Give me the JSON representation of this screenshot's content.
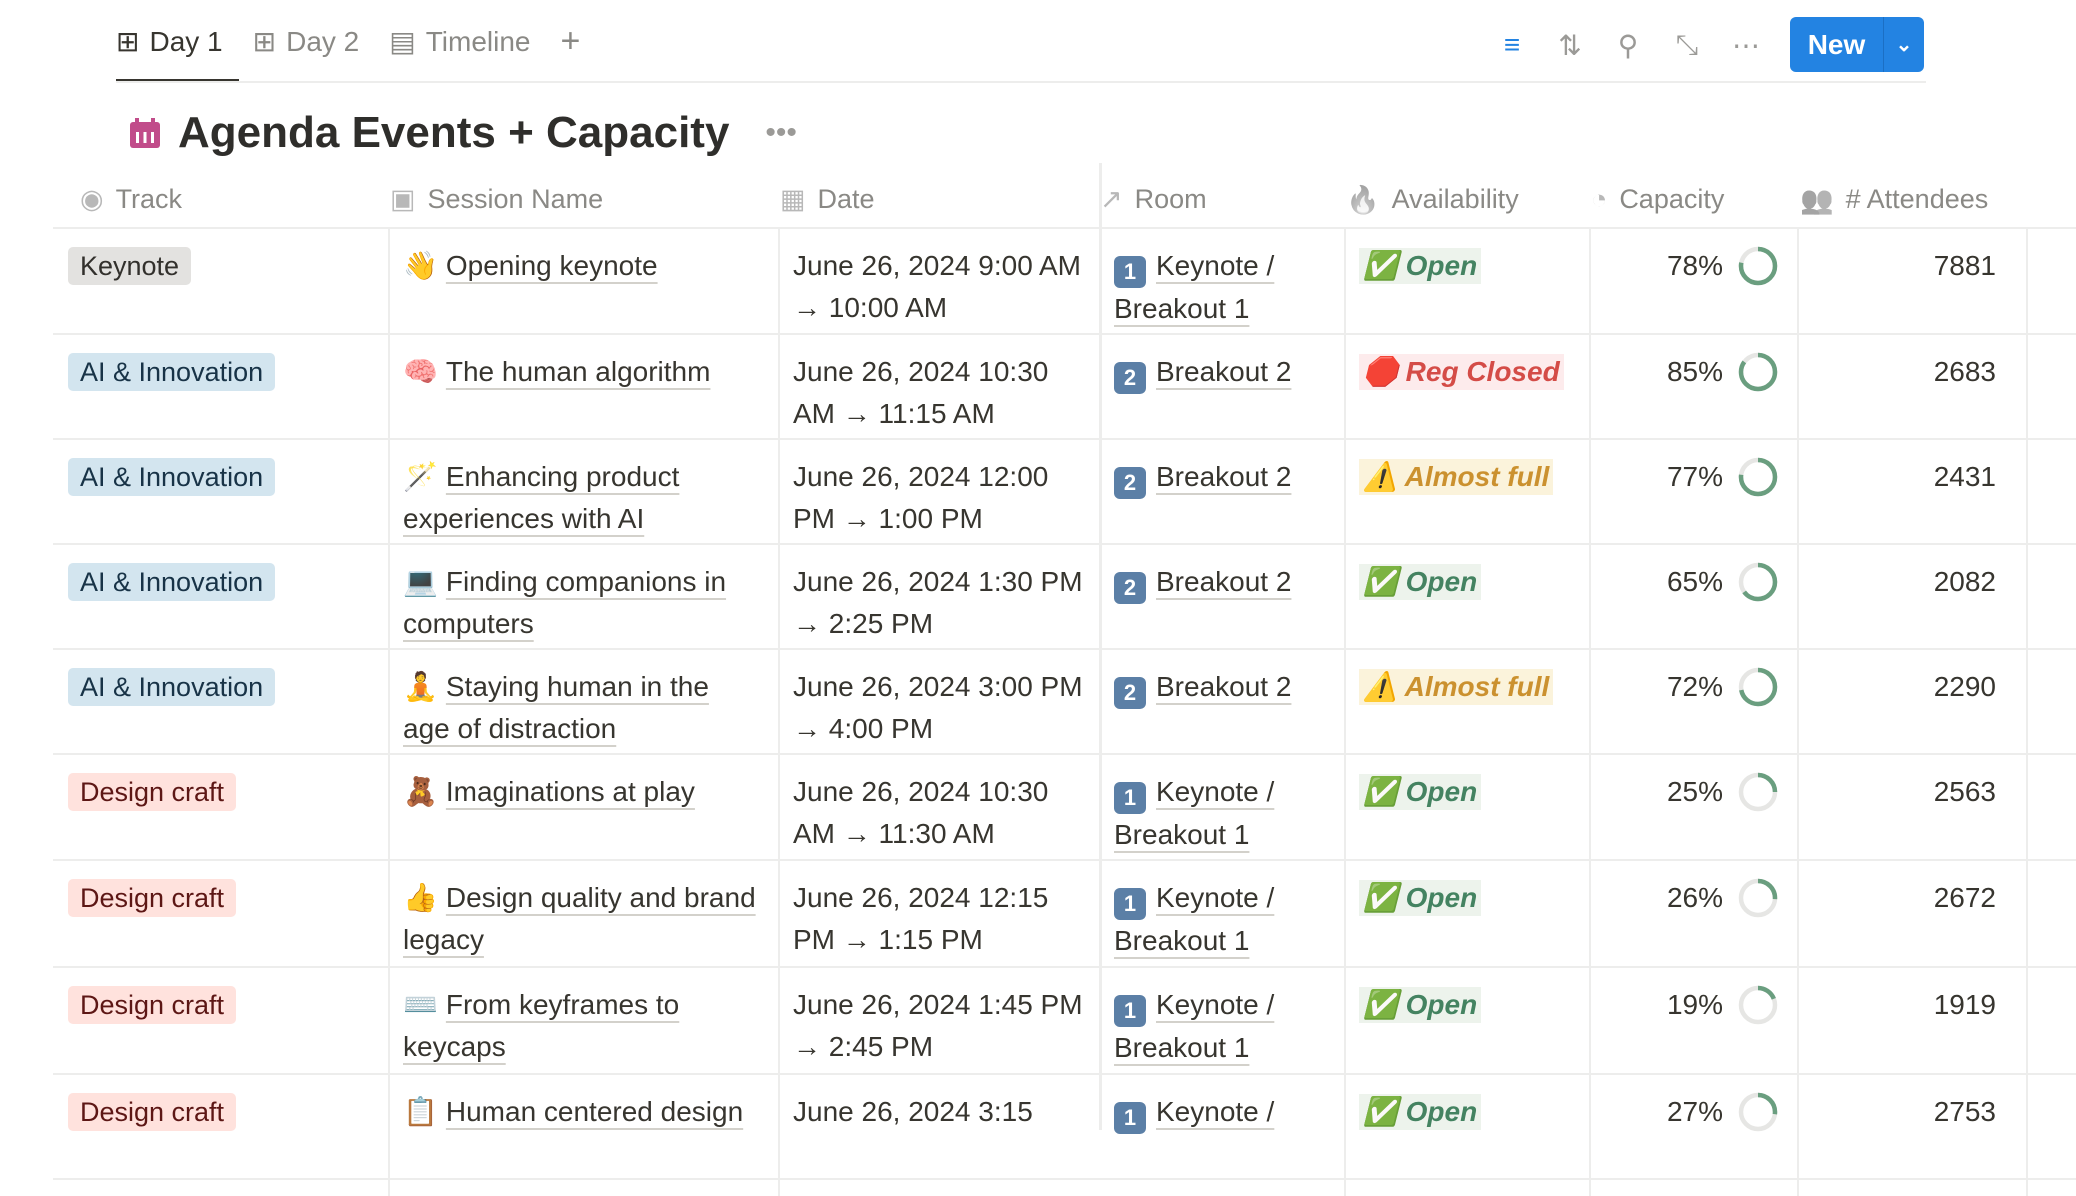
{
  "tabs": [
    {
      "label": "Day 1",
      "icon": "table-icon",
      "active": true
    },
    {
      "label": "Day 2",
      "icon": "table-icon"
    },
    {
      "label": "Timeline",
      "icon": "timeline-icon"
    }
  ],
  "toolbar": {
    "new_label": "New",
    "icons": [
      "filter-icon",
      "sort-icon",
      "search-icon",
      "expand-icon",
      "more-icon"
    ],
    "filter_color": "#2383e2"
  },
  "title": "Agenda Events + Capacity",
  "columns": [
    {
      "label": "Track",
      "icon": "select-icon"
    },
    {
      "label": "Session Name",
      "icon": "title-icon"
    },
    {
      "label": "Date",
      "icon": "calendar-icon"
    },
    {
      "label": "Room",
      "icon": "relation-arrow-icon"
    },
    {
      "label": "Availability",
      "icon": "fire-icon"
    },
    {
      "label": "Capacity",
      "icon": "gauge-icon"
    },
    {
      "label": "# Attendees",
      "icon": "people-icon"
    }
  ],
  "colors": {
    "ring": "#6a9e7f",
    "ring_bg": "#e6e6e4"
  },
  "rows": [
    {
      "track": "Keynote",
      "track_style": "gray",
      "emoji": "👋",
      "session": "Opening keynote",
      "date": "June 26, 2024 9:00 AM → 10:00 AM",
      "room_num": "1",
      "room": "Keynote / Breakout 1",
      "avail_icon": "✅",
      "avail": "Open",
      "avail_style": "open",
      "capacity": "78%",
      "cap_value": 78,
      "attendees": "7881"
    },
    {
      "track": "AI & Innovation",
      "track_style": "blue",
      "emoji": "🧠",
      "session": "The human algorithm",
      "date": "June 26, 2024 10:30 AM → 11:15 AM",
      "room_num": "2",
      "room": "Breakout 2",
      "avail_icon": "🛑",
      "avail": "Reg Closed",
      "avail_style": "closed",
      "capacity": "85%",
      "cap_value": 85,
      "attendees": "2683"
    },
    {
      "track": "AI & Innovation",
      "track_style": "blue",
      "emoji": "🪄",
      "session": "Enhancing product experiences with AI",
      "date": "June 26, 2024 12:00 PM → 1:00 PM",
      "room_num": "2",
      "room": "Breakout 2",
      "avail_icon": "⚠️",
      "avail": "Almost full",
      "avail_style": "almost",
      "capacity": "77%",
      "cap_value": 77,
      "attendees": "2431"
    },
    {
      "track": "AI & Innovation",
      "track_style": "blue",
      "emoji": "💻",
      "session": "Finding companions in computers",
      "date": "June 26, 2024 1:30 PM → 2:25 PM",
      "room_num": "2",
      "room": "Breakout 2",
      "avail_icon": "✅",
      "avail": "Open",
      "avail_style": "open",
      "capacity": "65%",
      "cap_value": 65,
      "attendees": "2082"
    },
    {
      "track": "AI & Innovation",
      "track_style": "blue",
      "emoji": "🧘",
      "session": "Staying human in the age of distraction",
      "date": "June 26, 2024 3:00 PM → 4:00 PM",
      "room_num": "2",
      "room": "Breakout 2",
      "avail_icon": "⚠️",
      "avail": "Almost full",
      "avail_style": "almost",
      "capacity": "72%",
      "cap_value": 72,
      "attendees": "2290"
    },
    {
      "track": "Design craft",
      "track_style": "red",
      "emoji": "🧸",
      "session": "Imaginations at play",
      "date": "June 26, 2024 10:30 AM → 11:30 AM",
      "room_num": "1",
      "room": "Keynote / Breakout 1",
      "avail_icon": "✅",
      "avail": "Open",
      "avail_style": "open",
      "capacity": "25%",
      "cap_value": 25,
      "attendees": "2563"
    },
    {
      "track": "Design craft",
      "track_style": "red",
      "emoji": "👍",
      "session": "Design quality and brand legacy",
      "date": "June 26, 2024 12:15 PM → 1:15 PM",
      "room_num": "1",
      "room": "Keynote / Breakout 1",
      "avail_icon": "✅",
      "avail": "Open",
      "avail_style": "open",
      "capacity": "26%",
      "cap_value": 26,
      "attendees": "2672"
    },
    {
      "track": "Design craft",
      "track_style": "red",
      "emoji": "⌨️",
      "session": "From keyframes to keycaps",
      "date": "June 26, 2024 1:45 PM → 2:45 PM",
      "room_num": "1",
      "room": "Keynote / Breakout 1",
      "avail_icon": "✅",
      "avail": "Open",
      "avail_style": "open",
      "capacity": "19%",
      "cap_value": 19,
      "attendees": "1919"
    },
    {
      "track": "Design craft",
      "track_style": "red",
      "emoji": "📋",
      "session": "Human centered design",
      "date": "June 26, 2024 3:15",
      "room_num": "1",
      "room": "Keynote /",
      "avail_icon": "✅",
      "avail": "Open",
      "avail_style": "open",
      "capacity": "27%",
      "cap_value": 27,
      "attendees": "2753"
    }
  ]
}
